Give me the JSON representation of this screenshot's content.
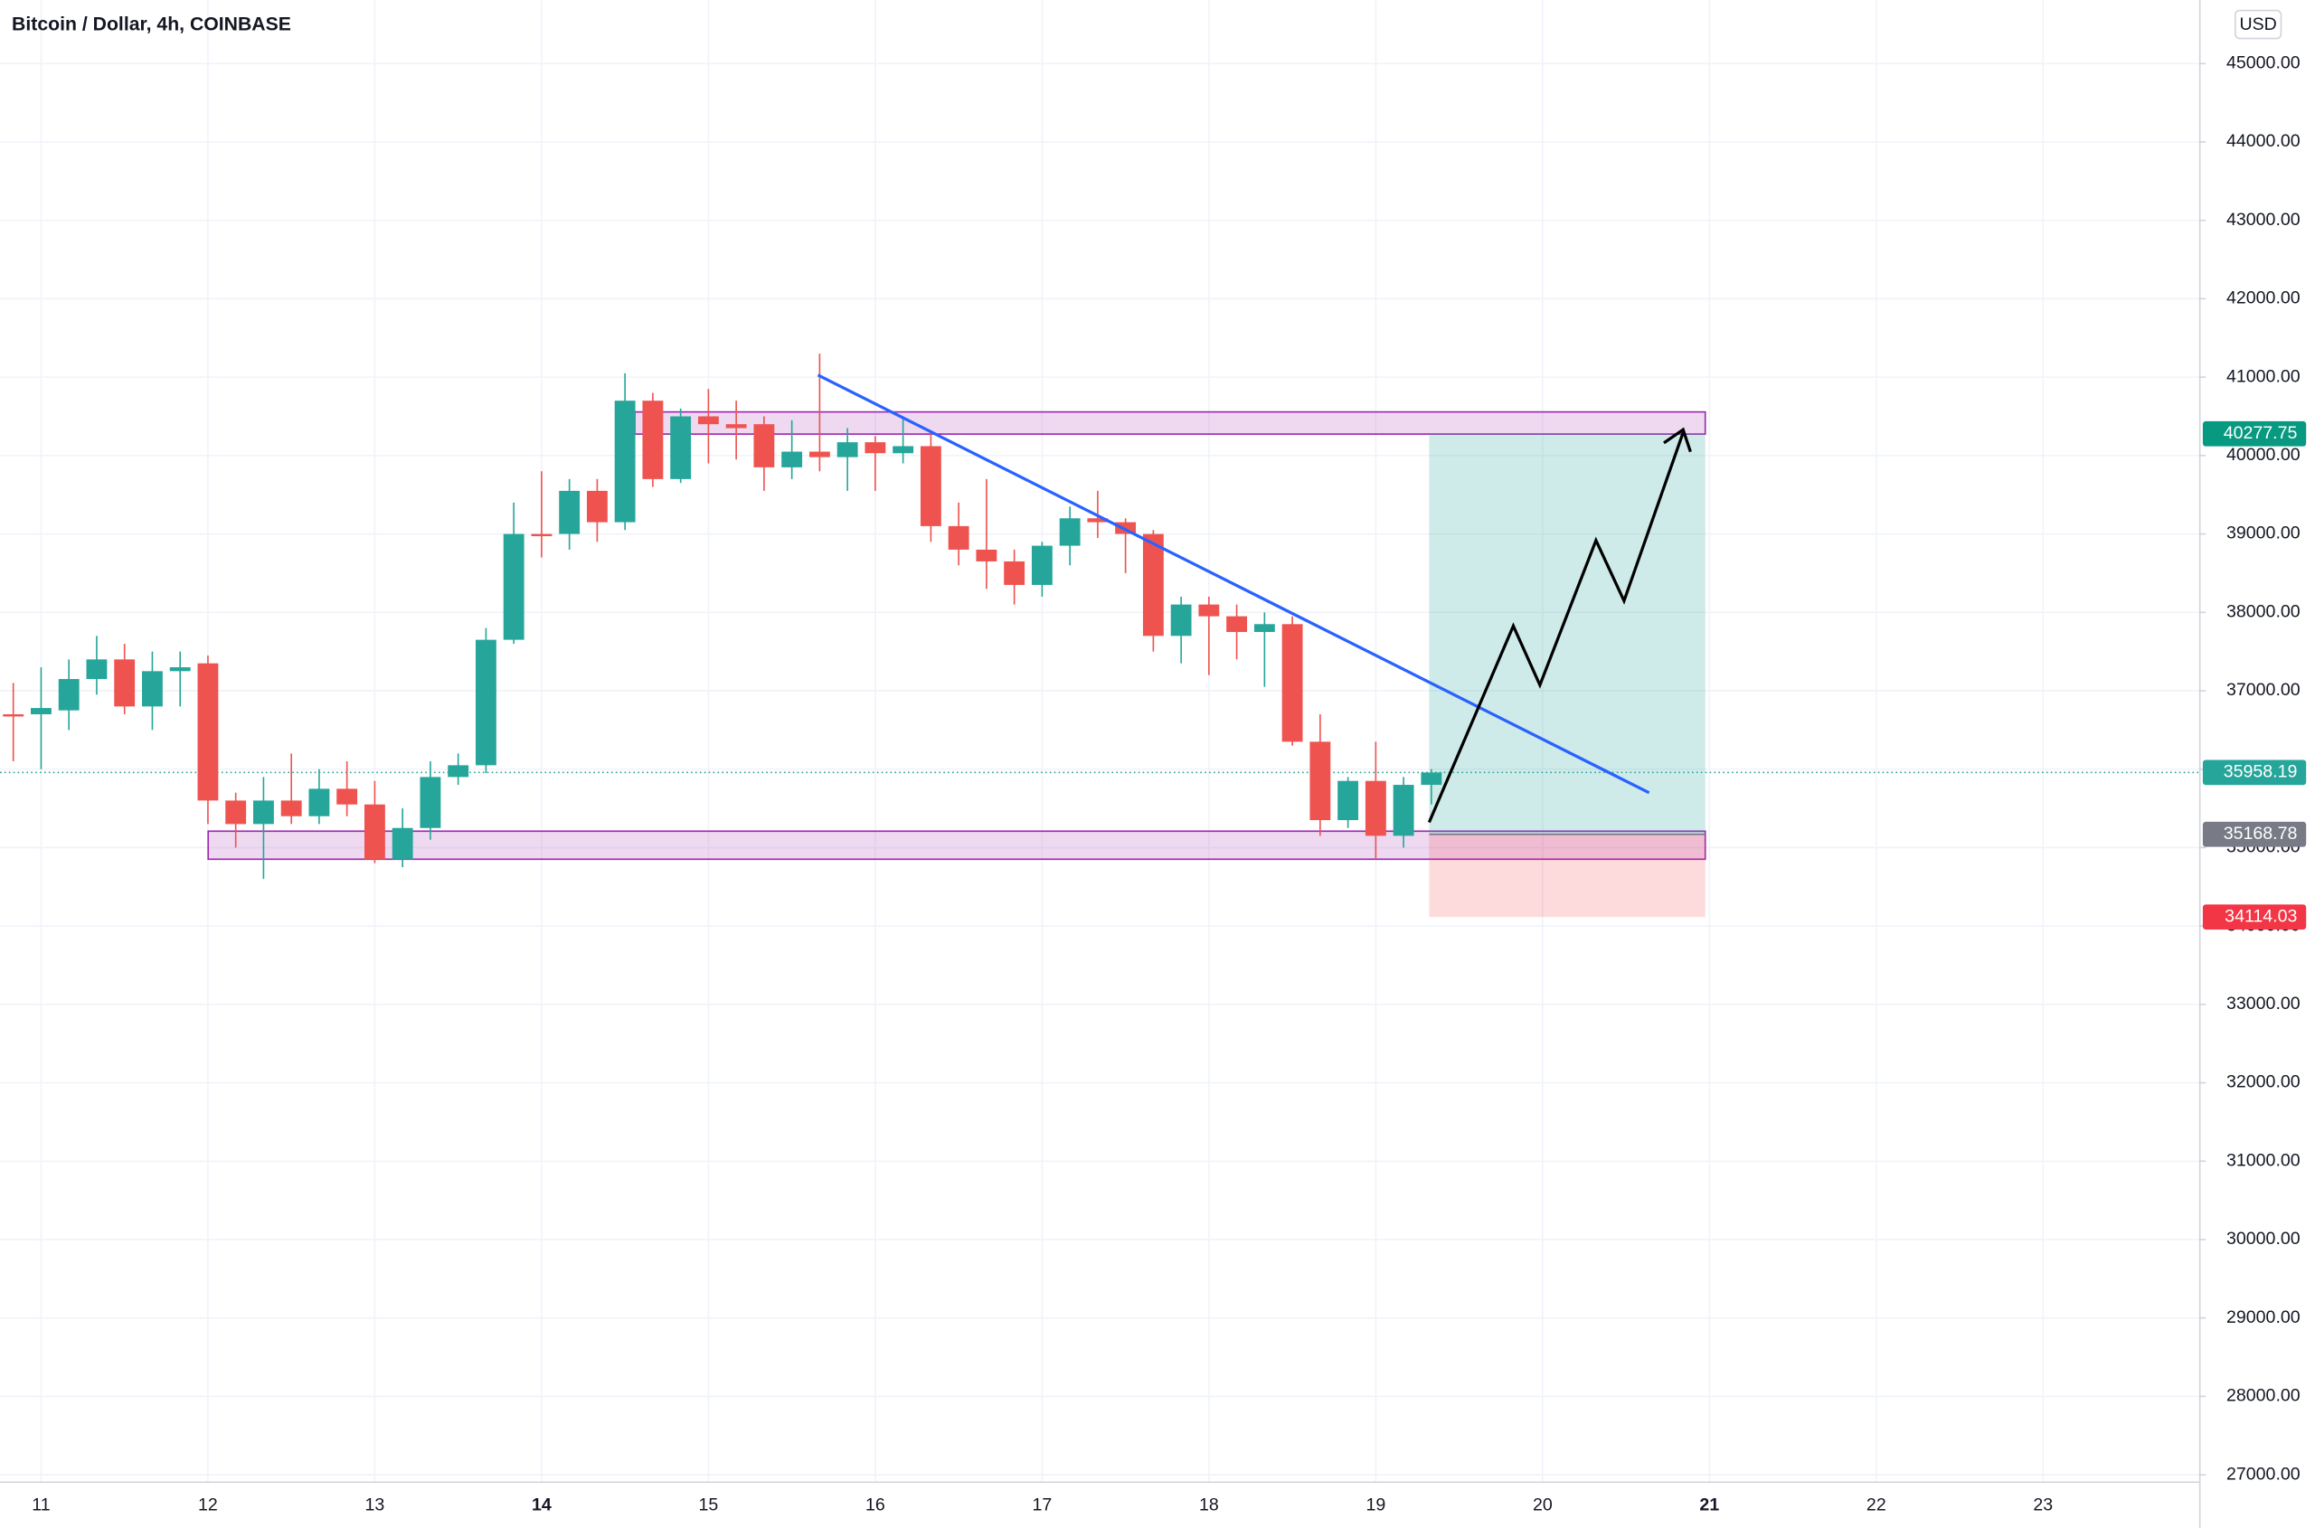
{
  "chart_data": {
    "type": "candlestick",
    "title": "Bitcoin / Dollar, 4h, COINBASE",
    "currency": "USD",
    "ylim": [
      27000,
      45000
    ],
    "yticks": [
      {
        "value": 27000,
        "label": "27000.00"
      },
      {
        "value": 28000,
        "label": "28000.00"
      },
      {
        "value": 29000,
        "label": "29000.00"
      },
      {
        "value": 30000,
        "label": "30000.00"
      },
      {
        "value": 31000,
        "label": "31000.00"
      },
      {
        "value": 32000,
        "label": "32000.00"
      },
      {
        "value": 33000,
        "label": "33000.00"
      },
      {
        "value": 34000,
        "label": "34000.00"
      },
      {
        "value": 35000,
        "label": "35000.00"
      },
      {
        "value": 36000,
        "label": "36000.00"
      },
      {
        "value": 37000,
        "label": "37000.00"
      },
      {
        "value": 38000,
        "label": "38000.00"
      },
      {
        "value": 39000,
        "label": "39000.00"
      },
      {
        "value": 40000,
        "label": "40000.00"
      },
      {
        "value": 41000,
        "label": "41000.00"
      },
      {
        "value": 42000,
        "label": "42000.00"
      },
      {
        "value": 43000,
        "label": "43000.00"
      },
      {
        "value": 44000,
        "label": "44000.00"
      },
      {
        "value": 45000,
        "label": "45000.00"
      }
    ],
    "xticks": [
      11,
      12,
      13,
      14,
      15,
      16,
      17,
      18,
      19,
      20,
      21,
      22,
      23
    ],
    "grid": true,
    "up_color": "#26a69a",
    "down_color": "#ef5350",
    "open": [
      36700,
      36700,
      36750,
      37150,
      37400,
      36800,
      37250,
      37350,
      35600,
      35300,
      35600,
      35400,
      35750,
      35550,
      34850,
      35250,
      35900,
      36050,
      37650,
      39000,
      39000,
      39550,
      39150,
      40700,
      39700,
      40500,
      40400,
      40400,
      39850,
      40050,
      39980,
      40170,
      40030,
      40120,
      39100,
      38800,
      38650,
      38350,
      38850,
      39200,
      39150,
      39000,
      37700,
      38100,
      37950,
      37750,
      37850,
      36350,
      35350,
      35850,
      35150,
      35800
    ],
    "high": [
      37100,
      37300,
      37400,
      37700,
      37600,
      37500,
      37500,
      37450,
      35700,
      35900,
      36200,
      36000,
      36100,
      35850,
      35500,
      36100,
      36200,
      37800,
      39400,
      39800,
      39700,
      39700,
      41050,
      40800,
      40600,
      40850,
      40700,
      40500,
      40450,
      41300,
      40350,
      40250,
      40500,
      40300,
      39400,
      39700,
      38800,
      38900,
      39350,
      39550,
      39200,
      39050,
      38200,
      38200,
      38100,
      38000,
      37950,
      36700,
      35900,
      36350,
      35900,
      36000
    ],
    "low": [
      36100,
      36000,
      36500,
      36950,
      36700,
      36500,
      36800,
      35300,
      35000,
      34600,
      35300,
      35300,
      35400,
      34800,
      34750,
      35100,
      35800,
      35950,
      37600,
      38700,
      38800,
      38900,
      39050,
      39600,
      39650,
      39900,
      39950,
      39550,
      39700,
      39800,
      39550,
      39550,
      39900,
      38900,
      38600,
      38300,
      38100,
      38200,
      38600,
      38950,
      38500,
      37500,
      37350,
      37200,
      37400,
      37050,
      36300,
      35150,
      35250,
      34850,
      35000,
      35550
    ],
    "close": [
      36680,
      36780,
      37150,
      37400,
      36800,
      37250,
      37300,
      35600,
      35300,
      35600,
      35400,
      35750,
      35550,
      34850,
      35250,
      35900,
      36050,
      37650,
      39000,
      38980,
      39550,
      39150,
      40700,
      39700,
      40500,
      40400,
      40350,
      39850,
      40050,
      39980,
      40170,
      40030,
      40120,
      39100,
      38800,
      38650,
      38350,
      38850,
      39200,
      39150,
      39000,
      37700,
      38100,
      37950,
      37750,
      37850,
      36350,
      35350,
      35850,
      35150,
      35800,
      35958.19
    ],
    "price_labels": [
      {
        "value": 40277.75,
        "color": "#089981"
      },
      {
        "value": 35958.19,
        "color": "#26a69a"
      },
      {
        "value": 35168.78,
        "color": "#787b86"
      },
      {
        "value": 34114.03,
        "color": "#f23645"
      }
    ]
  }
}
